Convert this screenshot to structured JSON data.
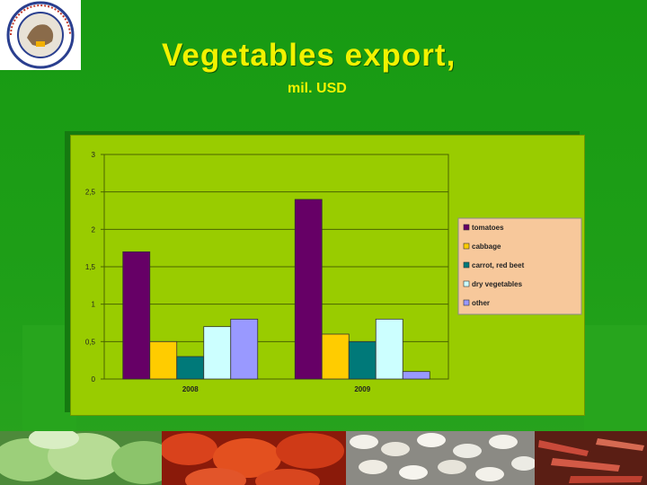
{
  "header": {
    "title": "Vegetables export,",
    "subtitle": "mil. USD"
  },
  "logo": {
    "icon": "ministry-seal-icon"
  },
  "colors": {
    "background": "#179a12",
    "title": "#f2f200",
    "plot_area": "#99cc00",
    "legend_bg": "#f7c89b"
  },
  "chart_data": {
    "type": "bar",
    "categories": [
      "2008",
      "2009"
    ],
    "series": [
      {
        "name": "tomatoes",
        "color": "#660066",
        "values": [
          1.7,
          2.4
        ]
      },
      {
        "name": "cabbage",
        "color": "#ffcc00",
        "values": [
          0.5,
          0.6
        ]
      },
      {
        "name": "carrot, red beet",
        "color": "#007979",
        "values": [
          0.3,
          0.5
        ]
      },
      {
        "name": "dry vegetables",
        "color": "#ccffff",
        "values": [
          0.7,
          0.8
        ]
      },
      {
        "name": "other",
        "color": "#9999ff",
        "values": [
          0.8,
          0.1
        ]
      }
    ],
    "ylim": [
      0,
      3
    ],
    "yticks": [
      "0",
      "0,5",
      "1",
      "1,5",
      "2",
      "2,5",
      "3"
    ],
    "grid": true,
    "legend_position": "right"
  },
  "photos": [
    "cabbage-photo",
    "tomatoes-photo",
    "white-beans-photo",
    "carrots-photo"
  ]
}
